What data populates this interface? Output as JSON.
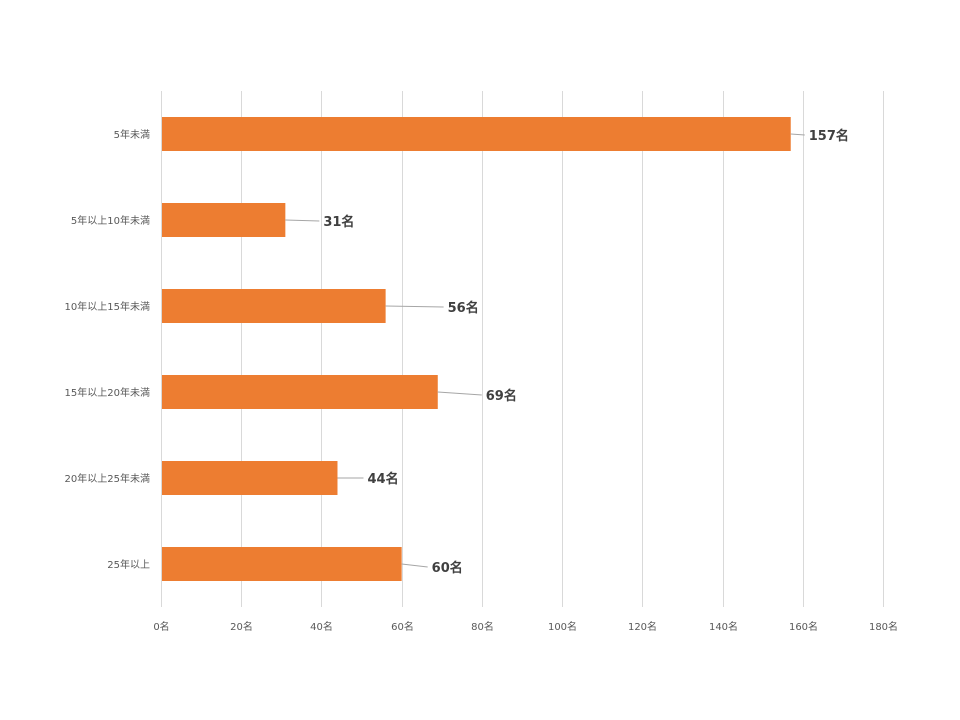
{
  "chart_data": {
    "type": "bar",
    "orientation": "horizontal",
    "categories": [
      "5年未満",
      "5年以上10年未満",
      "10年以上15年未満",
      "15年以上20年未満",
      "20年以上25年未満",
      "25年以上"
    ],
    "values": [
      157,
      31,
      56,
      69,
      44,
      60
    ],
    "data_labels": [
      "157名",
      "31名",
      "56名",
      "69名",
      "44名",
      "60名"
    ],
    "x_ticks": [
      "0名",
      "20名",
      "40名",
      "60名",
      "80名",
      "100名",
      "120名",
      "140名",
      "160名",
      "180名"
    ],
    "xlim": [
      0,
      180
    ],
    "grid": true,
    "bar_color": "#ED7D31"
  }
}
